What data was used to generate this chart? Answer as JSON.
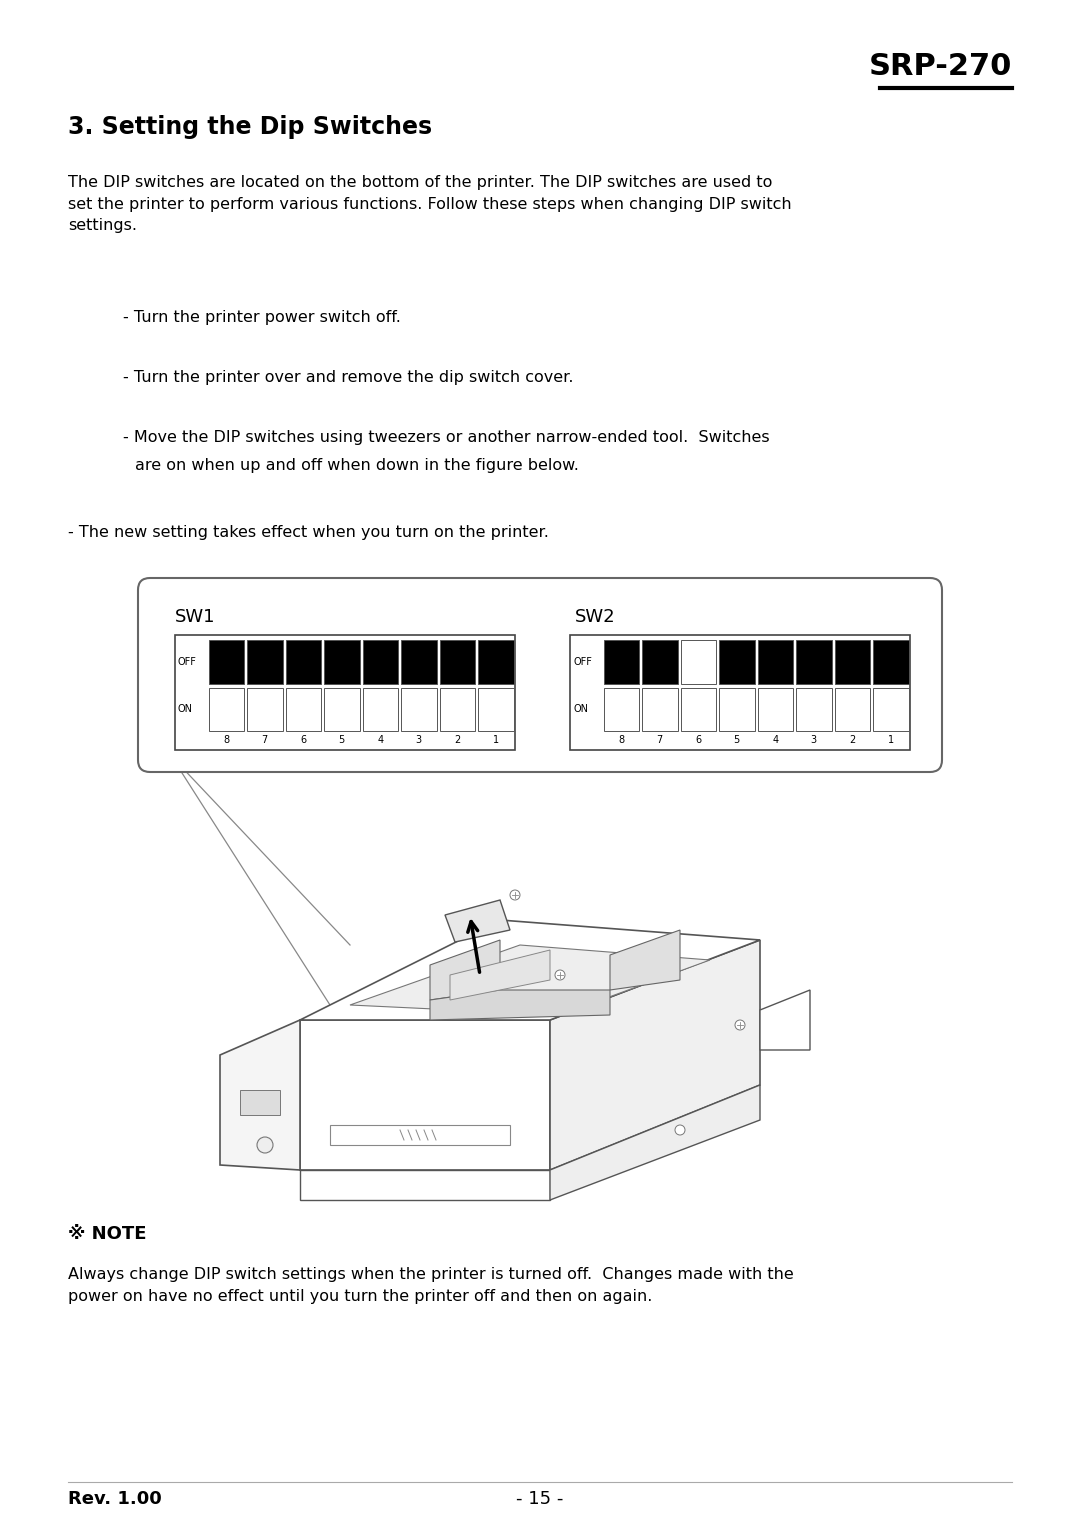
{
  "bg_color": "#ffffff",
  "page_width": 10.8,
  "page_height": 15.27,
  "header_title": "SRP-270",
  "section_title": "3. Setting the Dip Switches",
  "body_text": "The DIP switches are located on the bottom of the printer. The DIP switches are used to\nset the printer to perform various functions. Follow these steps when changing DIP switch\nsettings.",
  "bullet1": "- Turn the printer power switch off.",
  "bullet2": "- Turn the printer over and remove the dip switch cover.",
  "bullet3": "- Move the DIP switches using tweezers or another narrow-ended tool.  Switches\n   are on when up and off when down in the figure below.",
  "bullet4": "- The new setting takes effect when you turn on the printer.",
  "note_symbol": "※ NOTE",
  "note_text": "Always change DIP switch settings when the printer is turned off.  Changes made with the\npower on have no effect until you turn the printer off and then on again.",
  "footer_left": "Rev. 1.00",
  "footer_center": "- 15 -",
  "sw1_label": "SW1",
  "sw2_label": "SW2",
  "switch_numbers": [
    "8",
    "7",
    "6",
    "5",
    "4",
    "3",
    "2",
    "1"
  ],
  "sw1_off_pattern": [
    1,
    1,
    1,
    1,
    1,
    1,
    1,
    1
  ],
  "sw1_on_pattern": [
    0,
    0,
    0,
    0,
    0,
    0,
    0,
    0
  ],
  "sw2_off_pattern": [
    1,
    1,
    0,
    1,
    1,
    1,
    1,
    1
  ],
  "sw2_on_pattern": [
    0,
    0,
    0,
    0,
    0,
    0,
    0,
    0
  ]
}
